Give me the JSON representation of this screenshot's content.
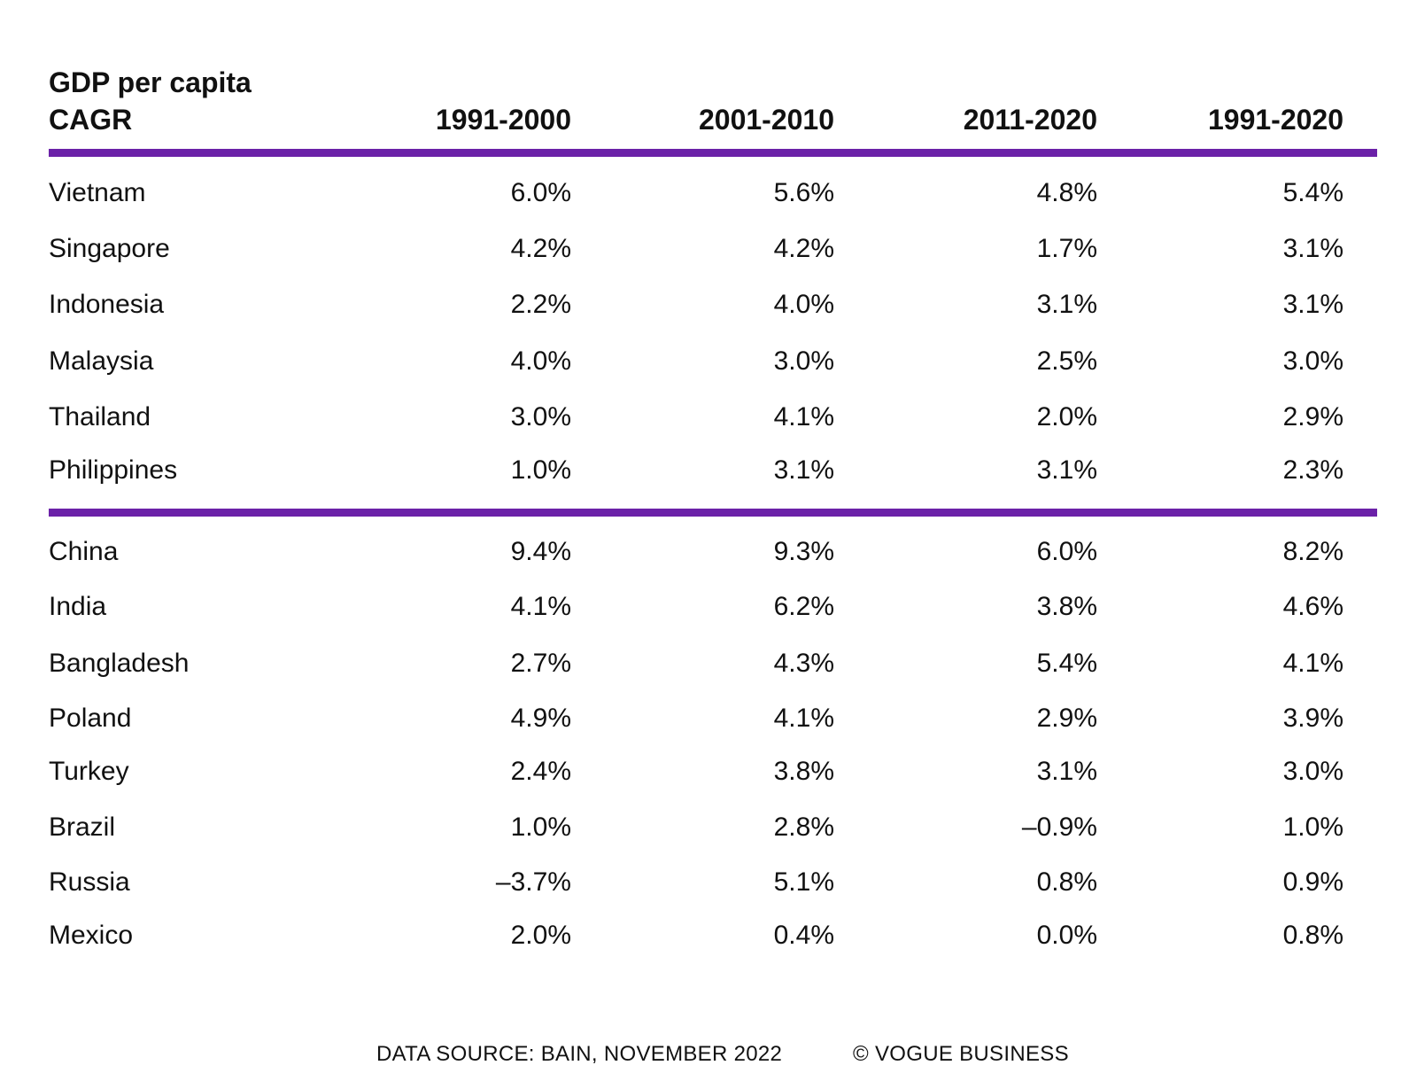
{
  "accent_color": "#6b21a8",
  "chart_data": {
    "type": "table",
    "header_title_line1": "GDP per capita",
    "header_title_line2": "CAGR",
    "columns": [
      "1991-2000",
      "2001-2010",
      "2011-2020",
      "1991-2020"
    ],
    "groups": [
      {
        "rows": [
          {
            "country": "Vietnam",
            "values": [
              "6.0%",
              "5.6%",
              "4.8%",
              "5.4%"
            ]
          },
          {
            "country": "Singapore",
            "values": [
              "4.2%",
              "4.2%",
              "1.7%",
              "3.1%"
            ]
          },
          {
            "country": "Indonesia",
            "values": [
              "2.2%",
              "4.0%",
              "3.1%",
              "3.1%"
            ]
          },
          {
            "country": "Malaysia",
            "values": [
              "4.0%",
              "3.0%",
              "2.5%",
              "3.0%"
            ]
          },
          {
            "country": "Thailand",
            "values": [
              "3.0%",
              "4.1%",
              "2.0%",
              "2.9%"
            ]
          },
          {
            "country": "Philippines",
            "values": [
              "1.0%",
              "3.1%",
              "3.1%",
              "2.3%"
            ]
          }
        ]
      },
      {
        "rows": [
          {
            "country": "China",
            "values": [
              "9.4%",
              "9.3%",
              "6.0%",
              "8.2%"
            ]
          },
          {
            "country": "India",
            "values": [
              "4.1%",
              "6.2%",
              "3.8%",
              "4.6%"
            ]
          },
          {
            "country": "Bangladesh",
            "values": [
              "2.7%",
              "4.3%",
              "5.4%",
              "4.1%"
            ]
          },
          {
            "country": "Poland",
            "values": [
              "4.9%",
              "4.1%",
              "2.9%",
              "3.9%"
            ]
          },
          {
            "country": "Turkey",
            "values": [
              "2.4%",
              "3.8%",
              "3.1%",
              "3.0%"
            ]
          },
          {
            "country": "Brazil",
            "values": [
              "1.0%",
              "2.8%",
              "–0.9%",
              "1.0%"
            ]
          },
          {
            "country": "Russia",
            "values": [
              "–3.7%",
              "5.1%",
              "0.8%",
              "0.9%"
            ]
          },
          {
            "country": "Mexico",
            "values": [
              "2.0%",
              "0.4%",
              "0.0%",
              "0.8%"
            ]
          }
        ]
      }
    ]
  },
  "footer": {
    "source": "DATA SOURCE: BAIN, NOVEMBER 2022",
    "copyright": "© VOGUE BUSINESS"
  }
}
